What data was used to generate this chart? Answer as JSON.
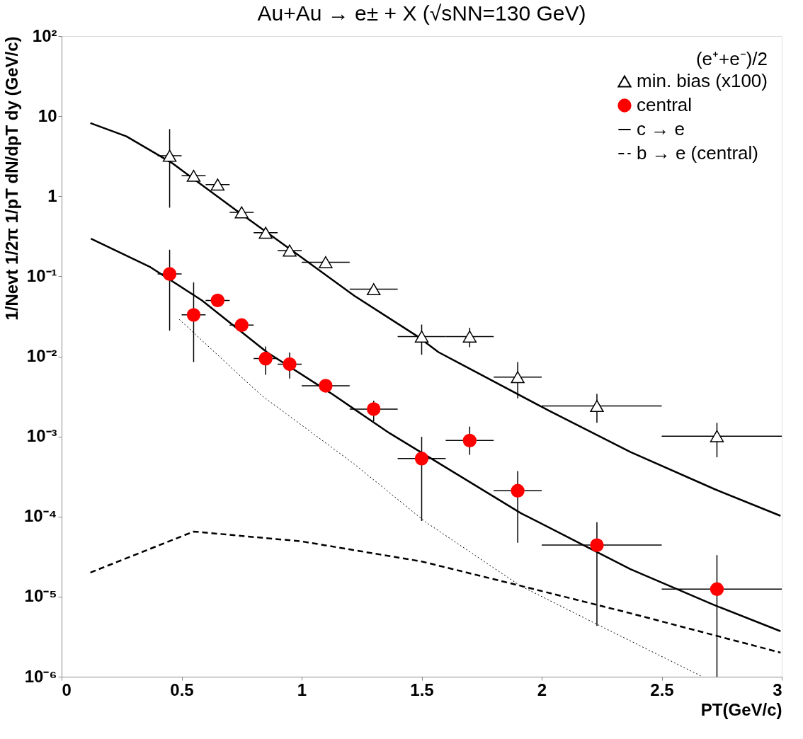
{
  "chart_data": {
    "type": "scatter",
    "title": "Au+Au → e± + X (√sNN=130 GeV)",
    "xlabel": "PT(GeV/c)",
    "ylabel": "1/Nevt 1/2π 1/pT dN/dpT dy (GeV/c)",
    "legend_title": "(e⁺+e⁻)/2",
    "log": "y",
    "grid": false,
    "legend": "top right",
    "xlim": [
      0,
      3
    ],
    "xticks": [
      0,
      0.5,
      1,
      1.5,
      2,
      2.5,
      3
    ],
    "ylim": [
      1e-06,
      100
    ],
    "yticks": [
      {
        "value": 1e-06,
        "label": "10⁻⁶"
      },
      {
        "value": 1e-05,
        "label": "10⁻⁵"
      },
      {
        "value": 0.0001,
        "label": "10⁻⁴"
      },
      {
        "value": 0.001,
        "label": "10⁻³"
      },
      {
        "value": 0.01,
        "label": "10⁻²"
      },
      {
        "value": 0.1,
        "label": "10⁻¹"
      },
      1,
      10,
      {
        "value": 100,
        "label": "10²"
      }
    ],
    "series": [
      {
        "name": "min. bias (x100)",
        "marker": "triangle",
        "color": "#000000",
        "x": [
          0.45,
          0.55,
          0.65,
          0.75,
          0.85,
          0.95,
          1.1,
          1.3,
          1.5,
          1.7,
          1.9,
          2.23,
          2.73
        ],
        "values": [
          3.2,
          1.8,
          1.4,
          0.63,
          0.35,
          0.21,
          0.15,
          0.069,
          0.0177,
          0.0177,
          0.0055,
          0.0024,
          0.00101
        ],
        "errors": [
          [
            0.72,
            6.9
          ],
          null,
          null,
          null,
          null,
          null,
          null,
          null,
          [
            0.0105,
            0.025
          ],
          [
            0.013,
            0.0227
          ],
          [
            0.003,
            0.0085
          ],
          [
            0.00148,
            0.0034
          ],
          [
            0.00055,
            0.00148
          ]
        ],
        "xerrors": [
          0.05,
          0.05,
          0.05,
          0.05,
          0.05,
          0.05,
          0.1,
          0.1,
          0.1,
          0.1,
          0.1,
          [
            2.0,
            2.5
          ],
          [
            2.5,
            3.0
          ]
        ]
      },
      {
        "name": "central",
        "marker": "circle",
        "color": "#ff0000",
        "x": [
          0.45,
          0.55,
          0.65,
          0.75,
          0.85,
          0.95,
          1.1,
          1.3,
          1.5,
          1.7,
          1.9,
          2.23,
          2.73
        ],
        "values": [
          0.107,
          0.033,
          0.05,
          0.0246,
          0.0094,
          0.008,
          0.0043,
          0.0022,
          0.00053,
          0.00089,
          0.00021,
          4.4e-05,
          1.24e-05
        ],
        "errors": [
          [
            0.021,
            0.215
          ],
          [
            0.0085,
            0.084
          ],
          null,
          null,
          [
            0.0059,
            0.0133
          ],
          [
            0.0053,
            0.0112
          ],
          null,
          [
            0.00155,
            0.0028
          ],
          [
            8.8e-05,
            0.00099
          ],
          [
            0.00059,
            0.00133
          ],
          [
            4.7e-05,
            0.00037
          ],
          [
            4.3e-06,
            8.5e-05
          ],
          [
            1e-06,
            3.3e-05
          ]
        ],
        "xerrors": [
          0.05,
          0.05,
          0.05,
          0.05,
          0.05,
          0.05,
          0.1,
          0.1,
          0.1,
          0.1,
          0.1,
          [
            2.0,
            2.5
          ],
          [
            2.5,
            3.0
          ]
        ]
      },
      {
        "name": "c → e",
        "type": "line",
        "line_style": "solid",
        "color": "#000000",
        "x": [
          0.12,
          0.27,
          0.46,
          0.73,
          1.0,
          1.22,
          1.48,
          1.57,
          2.03,
          2.37,
          2.72,
          2.995
        ],
        "values": [
          8.2,
          5.6,
          2.6,
          0.66,
          0.172,
          0.057,
          0.018,
          0.0113,
          0.0021,
          0.00064,
          0.00022,
          0.000102
        ]
      },
      {
        "type": "line",
        "line_style": "solid",
        "color": "#000000",
        "x": [
          0.122,
          0.37,
          0.585,
          0.857,
          1.12,
          1.366,
          1.914,
          2.37,
          2.716,
          2.995
        ],
        "values": [
          0.295,
          0.13,
          0.05,
          0.0112,
          0.0035,
          0.0011,
          0.00011,
          2.2e-05,
          7.9e-06,
          3.7e-06
        ]
      },
      {
        "name": "b → e (central)",
        "type": "line",
        "line_style": "dashed",
        "color": "#000000",
        "x": [
          0.12,
          0.55,
          1.0,
          1.5,
          1.91,
          2.37,
          2.995
        ],
        "values": [
          2e-05,
          6.5e-05,
          4.9e-05,
          2.75e-05,
          1.37e-05,
          6.2e-06,
          2e-06
        ]
      },
      {
        "type": "line",
        "line_style": "dotted",
        "color": "#000000",
        "x": [
          0.49,
          0.83,
          1.22,
          1.515,
          1.91,
          2.258,
          2.67
        ],
        "values": [
          0.029,
          0.0033,
          0.00045,
          8.6e-05,
          1.37e-05,
          4.1e-06,
          1e-06
        ]
      }
    ]
  }
}
